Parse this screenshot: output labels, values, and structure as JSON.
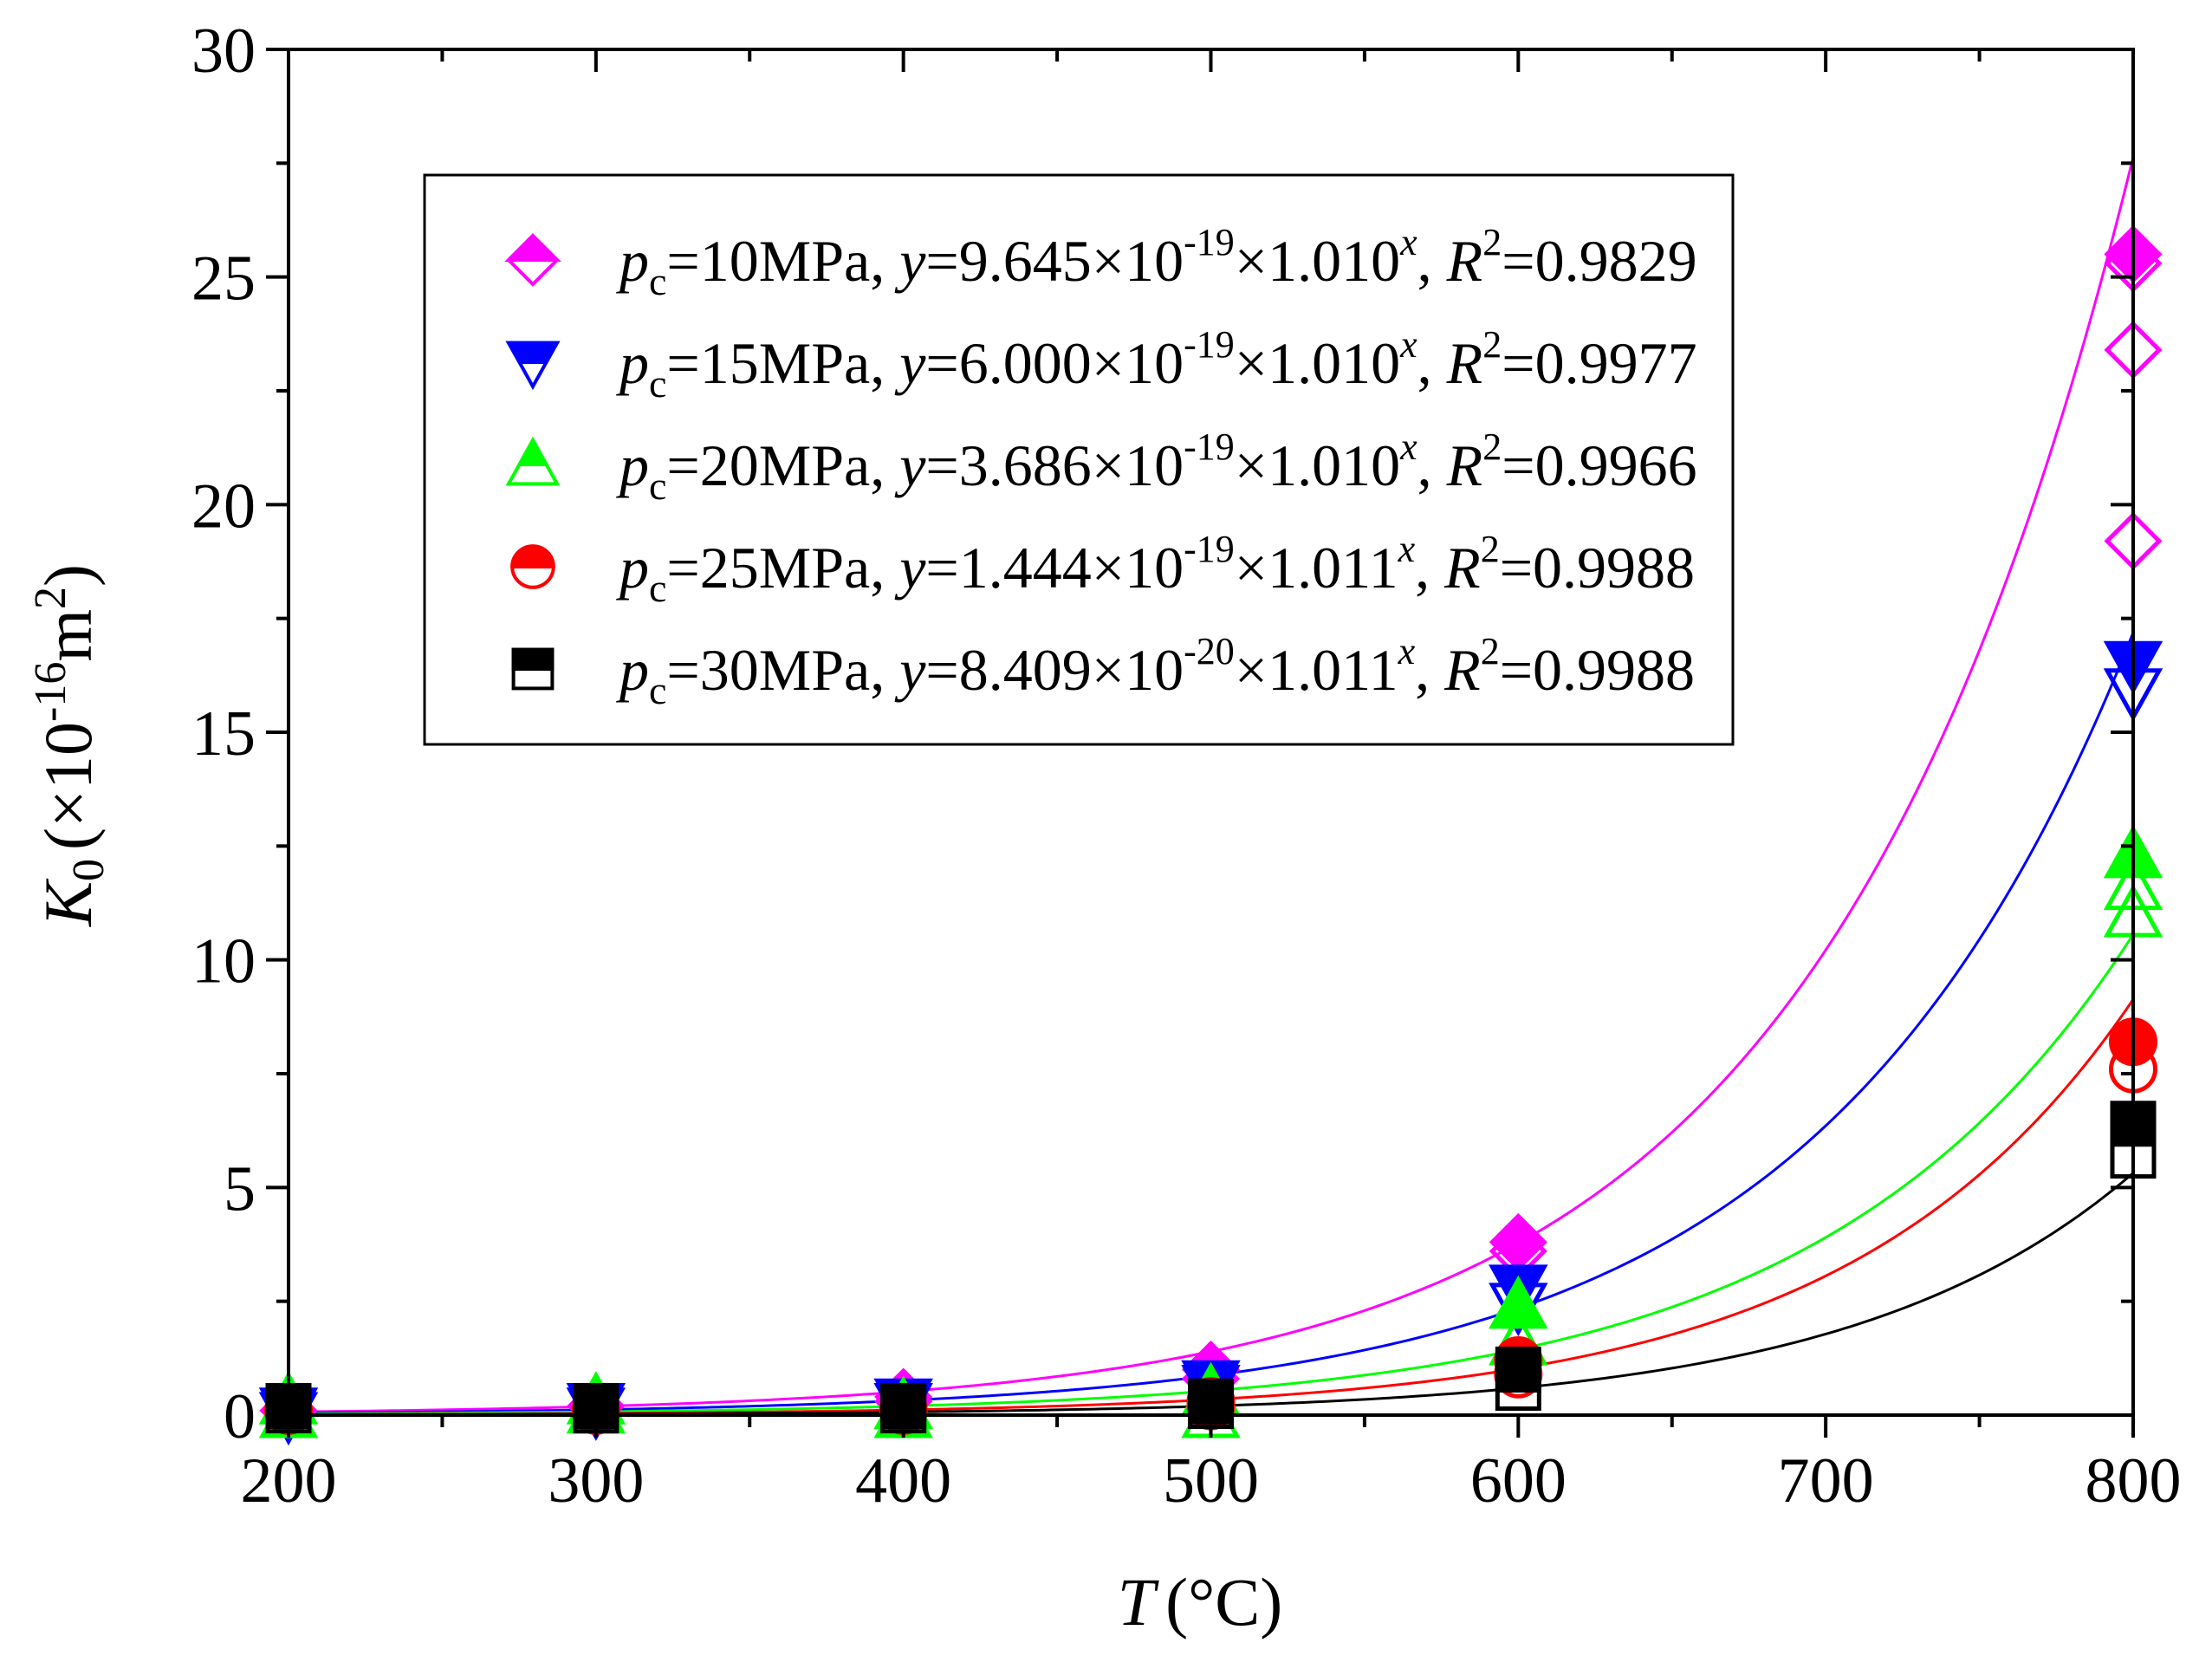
{
  "chart_data": {
    "type": "scatter",
    "title": "",
    "xlabel": {
      "var": "T",
      "unit": "(°C)"
    },
    "ylabel": {
      "var": "K",
      "sub": "0",
      "unit_open": "(×10",
      "unit_exp": "-16",
      "unit_mid": "m",
      "unit_exp2": "2",
      "unit_close": ")"
    },
    "xlim": [
      200,
      800
    ],
    "ylim": [
      0,
      30
    ],
    "x_ticks": [
      "200",
      "300",
      "400",
      "500",
      "600",
      "700",
      "800"
    ],
    "y_ticks": [
      "0",
      "5",
      "10",
      "15",
      "20",
      "25",
      "30"
    ],
    "x_tick_values": [
      200,
      300,
      400,
      500,
      600,
      700,
      800
    ],
    "y_tick_values": [
      0,
      5,
      10,
      15,
      20,
      25,
      30
    ],
    "grid": false,
    "legend_position": "top-center",
    "series": [
      {
        "name": "pc=10MPa",
        "color": "#ff00ff",
        "marker": "diamond",
        "legend": {
          "p": "p",
          "sub": "c",
          "pressure": "=10MPa, ",
          "y": "y",
          "eq": "=9.645×10",
          "exp": "-19",
          "base": "×1.010",
          "x": "x",
          "sep": ", ",
          "R": "R",
          "r2exp": "2",
          "r2val": "=0.9829"
        },
        "fit": {
          "a": 9.645e-19,
          "b": 1.01
        },
        "filled": {
          "x": [
            200,
            300,
            400,
            500,
            600,
            800
          ],
          "y": [
            0.1,
            0.2,
            0.4,
            1.0,
            3.8,
            25.5
          ]
        },
        "open": {
          "x": [
            200,
            300,
            400,
            500,
            600,
            800,
            800,
            800
          ],
          "y": [
            0.1,
            0.2,
            0.3,
            0.8,
            3.6,
            23.4,
            19.2,
            25.3
          ]
        }
      },
      {
        "name": "pc=15MPa",
        "color": "#0000ff",
        "marker": "triangle-down",
        "legend": {
          "p": "p",
          "sub": "c",
          "pressure": "=15MPa, ",
          "y": "y",
          "eq": "=6.000×10",
          "exp": "-19",
          "base": "×1.010",
          "x": "x",
          "sep": ", ",
          "R": "R",
          "r2exp": "2",
          "r2val": "=0.9977"
        },
        "fit": {
          "a": 6e-19,
          "b": 1.01
        },
        "filled": {
          "x": [
            200,
            300,
            400,
            500,
            600,
            800
          ],
          "y": [
            0.1,
            0.2,
            0.3,
            0.7,
            2.8,
            16.5
          ]
        },
        "open": {
          "x": [
            200,
            300,
            400,
            500,
            600,
            800
          ],
          "y": [
            0.0,
            0.1,
            0.2,
            0.6,
            2.4,
            15.9
          ]
        }
      },
      {
        "name": "pc=20MPa",
        "color": "#00ff00",
        "marker": "triangle-up",
        "legend": {
          "p": "p",
          "sub": "c",
          "pressure": "=20MPa, ",
          "y": "y",
          "eq": "=3.686×10",
          "exp": "-19",
          "base": "×1.010",
          "x": "x",
          "sep": ", ",
          "R": "R",
          "r2exp": "2",
          "r2val": "=0.9966"
        },
        "fit": {
          "a": 3.686e-19,
          "b": 1.01
        },
        "filled": {
          "x": [
            200,
            300,
            400,
            500,
            600,
            800
          ],
          "y": [
            0.3,
            0.3,
            0.2,
            0.5,
            2.4,
            12.3
          ]
        },
        "open": {
          "x": [
            200,
            300,
            400,
            500,
            600,
            800,
            800
          ],
          "y": [
            0.0,
            0.1,
            0.0,
            0.0,
            1.6,
            11.0,
            11.6
          ]
        }
      },
      {
        "name": "pc=25MPa",
        "color": "#ff0000",
        "marker": "circle",
        "legend": {
          "p": "p",
          "sub": "c",
          "pressure": "=25MPa, ",
          "y": "y",
          "eq": "=1.444×10",
          "exp": "-19",
          "base": "×1.011",
          "x": "x",
          "sep": ", ",
          "R": "R",
          "r2exp": "2",
          "r2val": "=0.9988"
        },
        "fit": {
          "a": 1.444e-19,
          "b": 1.011
        },
        "filled": {
          "x": [
            200,
            300,
            400,
            500,
            600,
            800
          ],
          "y": [
            0.1,
            0.1,
            0.1,
            0.3,
            1.2,
            8.2
          ]
        },
        "open": {
          "x": [
            200,
            300,
            400,
            500,
            600,
            800
          ],
          "y": [
            0.1,
            0.1,
            0.1,
            0.2,
            0.9,
            7.6
          ]
        }
      },
      {
        "name": "pc=30MPa",
        "color": "#000000",
        "marker": "square",
        "legend": {
          "p": "p",
          "sub": "c",
          "pressure": "=30MPa, ",
          "y": "y",
          "eq": "=8.409×10",
          "exp": "-20",
          "base": "×1.011",
          "x": "x",
          "sep": ", ",
          "R": "R",
          "r2exp": "2",
          "r2val": "=0.9988"
        },
        "fit": {
          "a": 8.409e-20,
          "b": 1.011
        },
        "filled": {
          "x": [
            200,
            300,
            400,
            500,
            600,
            800
          ],
          "y": [
            0.2,
            0.2,
            0.2,
            0.3,
            1.0,
            6.4
          ]
        },
        "open": {
          "x": [
            200,
            300,
            400,
            500,
            600,
            800
          ],
          "y": [
            0.1,
            0.1,
            0.1,
            0.2,
            0.6,
            5.7
          ]
        }
      }
    ]
  }
}
